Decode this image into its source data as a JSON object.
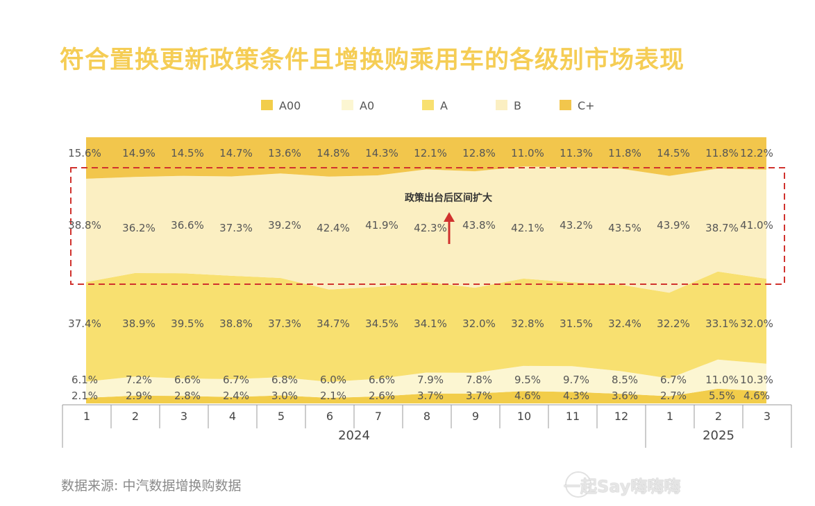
{
  "title": "符合置换更新政策条件且增换购乘用车的各级别市场表现",
  "source": "数据来源: 中汽数据增换购数据",
  "watermark": "一起Say嗨嗨嗨",
  "colors": {
    "A00": "#f2cd4a",
    "A0": "#fcf6d2",
    "A": "#f8e070",
    "B": "#fbefc2",
    "C+": "#f2c64c",
    "annotation": "#d0312d"
  },
  "chart_data": {
    "type": "area",
    "stacking": "percent",
    "categories": [
      "1",
      "2",
      "3",
      "4",
      "5",
      "6",
      "7",
      "8",
      "9",
      "10",
      "11",
      "12",
      "1",
      "2",
      "3"
    ],
    "year_groups": [
      {
        "label": "2024",
        "months": 12
      },
      {
        "label": "2025",
        "months": 3
      }
    ],
    "series": [
      {
        "name": "A00",
        "values": [
          2.1,
          2.9,
          2.8,
          2.4,
          3.0,
          2.1,
          2.6,
          3.7,
          3.7,
          4.6,
          4.3,
          3.6,
          2.7,
          5.5,
          4.6
        ]
      },
      {
        "name": "A0",
        "values": [
          6.1,
          7.2,
          6.6,
          6.7,
          6.8,
          6.0,
          6.6,
          7.9,
          7.8,
          9.5,
          9.7,
          8.5,
          6.7,
          11.0,
          10.3
        ]
      },
      {
        "name": "A",
        "values": [
          37.4,
          38.9,
          39.5,
          38.8,
          37.3,
          34.7,
          34.5,
          34.1,
          32.0,
          32.8,
          31.5,
          32.4,
          32.2,
          33.1,
          32.0
        ]
      },
      {
        "name": "B",
        "values": [
          38.8,
          36.2,
          36.6,
          37.3,
          39.2,
          42.4,
          41.9,
          42.3,
          43.8,
          42.1,
          43.2,
          43.5,
          43.9,
          38.7,
          41.0
        ]
      },
      {
        "name": "C+",
        "values": [
          15.6,
          14.9,
          14.5,
          14.7,
          13.6,
          14.8,
          14.3,
          12.1,
          12.8,
          11.0,
          11.3,
          11.8,
          14.5,
          11.8,
          12.2
        ]
      }
    ],
    "value_labels": {
      "A00": [
        "2.1%",
        "2.9%",
        "2.8%",
        "2.4%",
        "3.0%",
        "2.1%",
        "2.6%",
        "3.7%",
        "3.7%",
        "4.6%",
        "4.3%",
        "3.6%",
        "2.7%",
        "5.5%",
        "4.6%"
      ],
      "A0": [
        "6.1%",
        "7.2%",
        "6.6%",
        "6.7%",
        "6.8%",
        "6.0%",
        "6.6%",
        "7.9%",
        "7.8%",
        "9.5%",
        "9.7%",
        "8.5%",
        "6.7%",
        "11.0%",
        "10.3%"
      ],
      "A": [
        "37.4%",
        "38.9%",
        "39.5%",
        "38.8%",
        "37.3%",
        "34.7%",
        "34.5%",
        "34.1%",
        "32.0%",
        "32.8%",
        "31.5%",
        "32.4%",
        "32.2%",
        "33.1%",
        "32.0%"
      ],
      "B": [
        "38.8%",
        "36.2%",
        "36.6%",
        "37.3%",
        "39.2%",
        "42.4%",
        "41.9%",
        "42.3%",
        "43.8%",
        "42.1%",
        "43.2%",
        "43.5%",
        "43.9%",
        "38.7%",
        "41.0%"
      ],
      "C+": [
        "15.6%",
        "14.9%",
        "14.5%",
        "14.7%",
        "13.6%",
        "14.8%",
        "14.3%",
        "12.1%",
        "12.8%",
        "11.0%",
        "11.3%",
        "11.8%",
        "14.5%",
        "11.8%",
        "12.2%"
      ]
    },
    "legend": {
      "position": "top",
      "entries": [
        "A00",
        "A0",
        "A",
        "B",
        "C+"
      ]
    },
    "annotation": {
      "text": "政策出台后区间扩大",
      "target_series": "B",
      "marker": "dashed-box-with-up-arrow"
    }
  }
}
